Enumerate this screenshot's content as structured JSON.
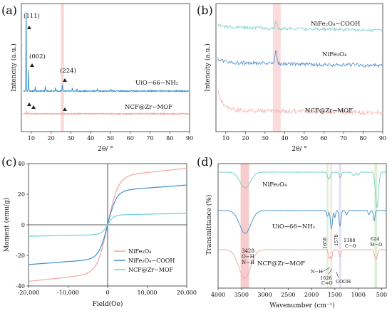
{
  "chart_data": [
    {
      "panel": "(a)",
      "type": "line",
      "xlabel": "2θ/ °",
      "ylabel": "Intencity (a.u.)",
      "xlim": [
        5,
        90
      ],
      "xticks": [
        10,
        20,
        30,
        40,
        50,
        60,
        70,
        80,
        90
      ],
      "highlight_band": [
        25,
        26.5
      ],
      "series": [
        {
          "name": "UiO−66−NH₂",
          "color": "#3b8fc9",
          "peaks": [
            [
              7.4,
              1.0
            ],
            [
              8.6,
              0.26
            ],
            [
              12.0,
              0.05
            ],
            [
              17.1,
              0.05
            ],
            [
              22.2,
              0.04
            ],
            [
              25.7,
              0.08
            ],
            [
              30.7,
              0.035
            ],
            [
              33.1,
              0.03
            ],
            [
              43.4,
              0.03
            ],
            [
              50.2,
              0.025
            ]
          ]
        },
        {
          "name": "NCF@Zr−MOF",
          "color": "#f2a3a3",
          "peaks": [
            [
              7.4,
              0.05
            ],
            [
              8.6,
              0.03
            ],
            [
              25.7,
              0.02
            ]
          ]
        }
      ],
      "annotations": [
        "(111)",
        "(002)",
        "(224)"
      ]
    },
    {
      "panel": "(b)",
      "type": "line",
      "xlabel": "2θ/ °",
      "ylabel": "Intencity (a.u.)",
      "xlim": [
        5,
        90
      ],
      "xticks": [
        10,
        20,
        30,
        40,
        50,
        60,
        70,
        80,
        90
      ],
      "highlight_band": [
        34,
        38
      ],
      "series": [
        {
          "name": "NiFe₂O₄−COOH",
          "color": "#7ed0d0",
          "peak": 35.6
        },
        {
          "name": "NiFe₂O₄",
          "color": "#4a8ed0",
          "peak": 35.6
        },
        {
          "name": "NCF@Zr−MOF",
          "color": "#f2b0b0",
          "peak": null
        }
      ]
    },
    {
      "panel": "(c)",
      "type": "line",
      "xlabel": "Field(Oe)",
      "ylabel": "Moment (emu/g)",
      "xlim": [
        -20000,
        20000
      ],
      "ylim": [
        -40,
        40
      ],
      "xticks": [
        -20000,
        -10000,
        0,
        10000,
        20000
      ],
      "xtick_labels": [
        "-20,000",
        "-10,000",
        "0",
        "10,000",
        "20,000"
      ],
      "yticks": [
        -40,
        -20,
        0,
        20,
        40
      ],
      "series": [
        {
          "name": "NiFe₂O₄",
          "color": "#f4a3a3",
          "saturation": 37
        },
        {
          "name": "NiFe₂O₄−COOH",
          "color": "#3b8fc9",
          "saturation": 26
        },
        {
          "name": "NCF@Zr−MOF",
          "color": "#6fd0d6",
          "saturation": 7.5
        }
      ],
      "legend_position": "bottom-right"
    },
    {
      "panel": "(d)",
      "type": "line",
      "xlabel": "Wavenumber (cm⁻¹)",
      "ylabel": "Transmittance (%)",
      "xlim": [
        4000,
        400
      ],
      "xticks": [
        4000,
        3500,
        3000,
        2500,
        2000,
        1500,
        1000,
        500
      ],
      "bands": [
        {
          "center": 3428,
          "width": 180,
          "color": "#f4b6b6"
        },
        {
          "center": 1658,
          "width": 40,
          "color": "#cfe8d0"
        },
        {
          "center": 1578,
          "width": 40,
          "color": "#f8d7c8"
        },
        {
          "center": 1388,
          "width": 50,
          "color": "#d9d4ef"
        },
        {
          "center": 624,
          "width": 60,
          "color": "#cfe8c4"
        }
      ],
      "series": [
        {
          "name": "NiFe₂O₄",
          "color": "#6ed1c4"
        },
        {
          "name": "UiO−66−NH₂",
          "color": "#3b8fc9"
        },
        {
          "name": "NCF@Zr−MOF",
          "color": "#f2a3a3"
        }
      ],
      "annotations": {
        "a3428": [
          "3428",
          "O−H",
          "N−H"
        ],
        "a1658": "1658",
        "a1578": "1578",
        "a1388": [
          "1388",
          "C−O"
        ],
        "a624": [
          "624",
          "M−O"
        ],
        "nh": "N−H",
        "a1626": [
          "1626",
          "C=O"
        ],
        "cooh": "COOH"
      }
    }
  ]
}
